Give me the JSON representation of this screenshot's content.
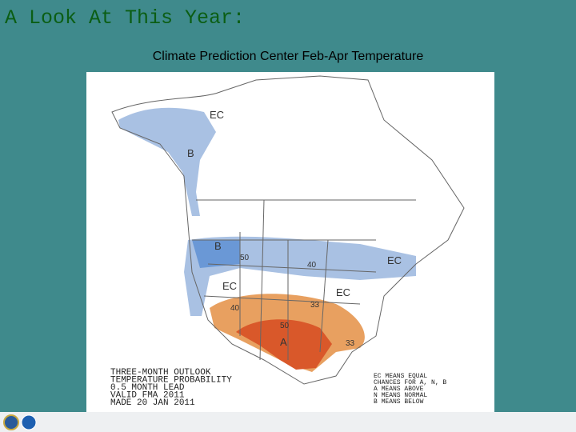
{
  "header": {
    "title": "A Look At This Year:",
    "subtitle": "Climate Prediction Center Feb-Apr Temperature"
  },
  "map": {
    "labels": [
      "EC",
      "B",
      "B",
      "50",
      "40",
      "EC",
      "EC",
      "EC",
      "40",
      "33",
      "50",
      "A",
      "33"
    ],
    "caption": [
      "THREE-MONTH OUTLOOK",
      "TEMPERATURE PROBABILITY",
      "0.5 MONTH LEAD",
      "VALID FMA 2011",
      "MADE 20 JAN 2011"
    ],
    "legend": [
      "EC MEANS EQUAL",
      "CHANCES FOR A, N, B",
      "A MEANS ABOVE",
      "N MEANS NORMAL",
      "B MEANS BELOW"
    ]
  }
}
